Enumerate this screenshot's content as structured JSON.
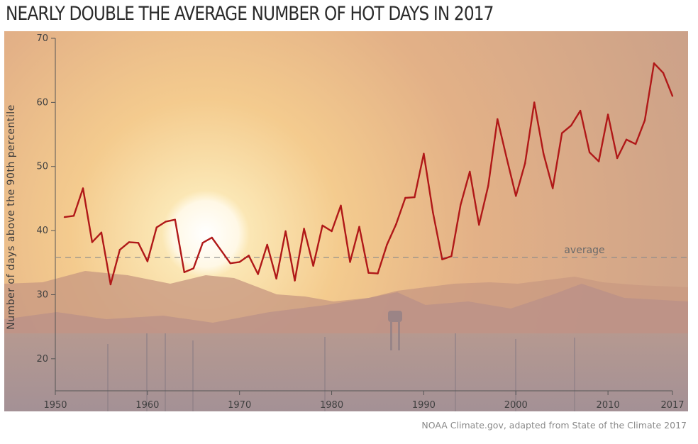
{
  "title": "NEARLY DOUBLE THE AVERAGE NUMBER OF HOT DAYS IN 2017",
  "source": "NOAA Climate.gov, adapted from State of the Climate 2017",
  "colors": {
    "line": "#b01818",
    "average": "#8a8a8a"
  },
  "chart_data": {
    "type": "line",
    "ylabel": "Number of days above the 90th percentile",
    "xlabel": "",
    "xlim": [
      1950,
      2017
    ],
    "ylim": [
      15,
      70
    ],
    "x_ticks": [
      1950,
      1960,
      1970,
      1980,
      1990,
      2000,
      2010,
      2017
    ],
    "y_ticks": [
      20,
      30,
      40,
      50,
      60,
      70
    ],
    "average": {
      "label": "average",
      "value": 35.8
    },
    "grid": false,
    "x": [
      1951,
      1952,
      1953,
      1954,
      1955,
      1956,
      1957,
      1958,
      1959,
      1960,
      1961,
      1962,
      1963,
      1964,
      1965,
      1966,
      1967,
      1968,
      1969,
      1970,
      1971,
      1972,
      1973,
      1974,
      1975,
      1976,
      1977,
      1978,
      1979,
      1980,
      1981,
      1982,
      1983,
      1984,
      1985,
      1986,
      1987,
      1988,
      1989,
      1990,
      1991,
      1992,
      1993,
      1994,
      1995,
      1996,
      1997,
      1998,
      1999,
      2000,
      2001,
      2002,
      2003,
      2004,
      2005,
      2006,
      2007,
      2008,
      2009,
      2010,
      2011,
      2012,
      2013,
      2014,
      2015,
      2016,
      2017
    ],
    "series": [
      {
        "values": [
          42.1,
          42.3,
          46.6,
          38.2,
          39.7,
          31.6,
          37.0,
          38.2,
          38.1,
          35.2,
          40.5,
          41.4,
          41.7,
          33.5,
          34.1,
          38.1,
          38.9,
          36.9,
          34.9,
          35.1,
          36.1,
          33.2,
          37.8,
          32.5,
          39.9,
          32.2,
          40.3,
          34.5,
          40.8,
          39.9,
          43.9,
          35.1,
          40.6,
          33.4,
          33.3,
          37.8,
          41.0,
          45.1,
          45.2,
          52.0,
          42.8,
          35.5,
          36.0,
          44.0,
          49.2,
          40.9,
          47.0,
          57.4,
          51.3,
          45.4,
          50.5,
          60.0,
          52.0,
          46.6,
          55.2,
          56.4,
          58.7,
          52.2,
          50.8,
          58.1,
          51.3,
          54.2,
          53.5,
          57.2,
          66.1,
          64.6,
          61.0
        ]
      }
    ]
  }
}
